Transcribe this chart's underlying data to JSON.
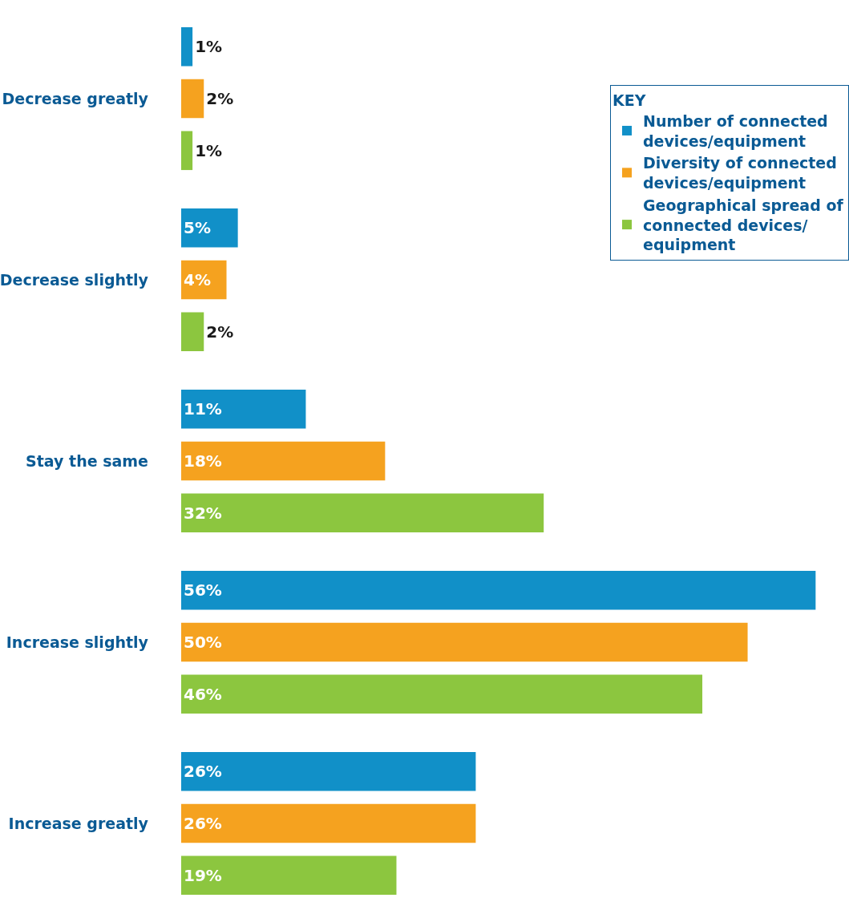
{
  "chart_data": {
    "type": "bar",
    "orientation": "horizontal",
    "categories": [
      "Decrease greatly",
      "Decrease slightly",
      "Stay the same",
      "Increase slightly",
      "Increase greatly"
    ],
    "series": [
      {
        "name": "Number of connected devices/equipment",
        "color": "#1190c8",
        "values": [
          1,
          5,
          11,
          56,
          26
        ],
        "value_labels": [
          "1%",
          "5%",
          "11%",
          "56%",
          "26%"
        ]
      },
      {
        "name": "Diversity of connected devices/equipment",
        "color": "#f5a21f",
        "values": [
          2,
          4,
          18,
          50,
          26
        ],
        "value_labels": [
          "2%",
          "4%",
          "18%",
          "50%",
          "26%"
        ]
      },
      {
        "name": "Geographical spread of connected devices/ equipment",
        "color": "#8cc63f",
        "values": [
          1,
          2,
          32,
          46,
          19
        ],
        "value_labels": [
          "1%",
          "2%",
          "32%",
          "46%",
          "19%"
        ]
      }
    ],
    "legend_title": "KEY",
    "legend": "top right",
    "grid": false,
    "tick_labels": "y"
  }
}
